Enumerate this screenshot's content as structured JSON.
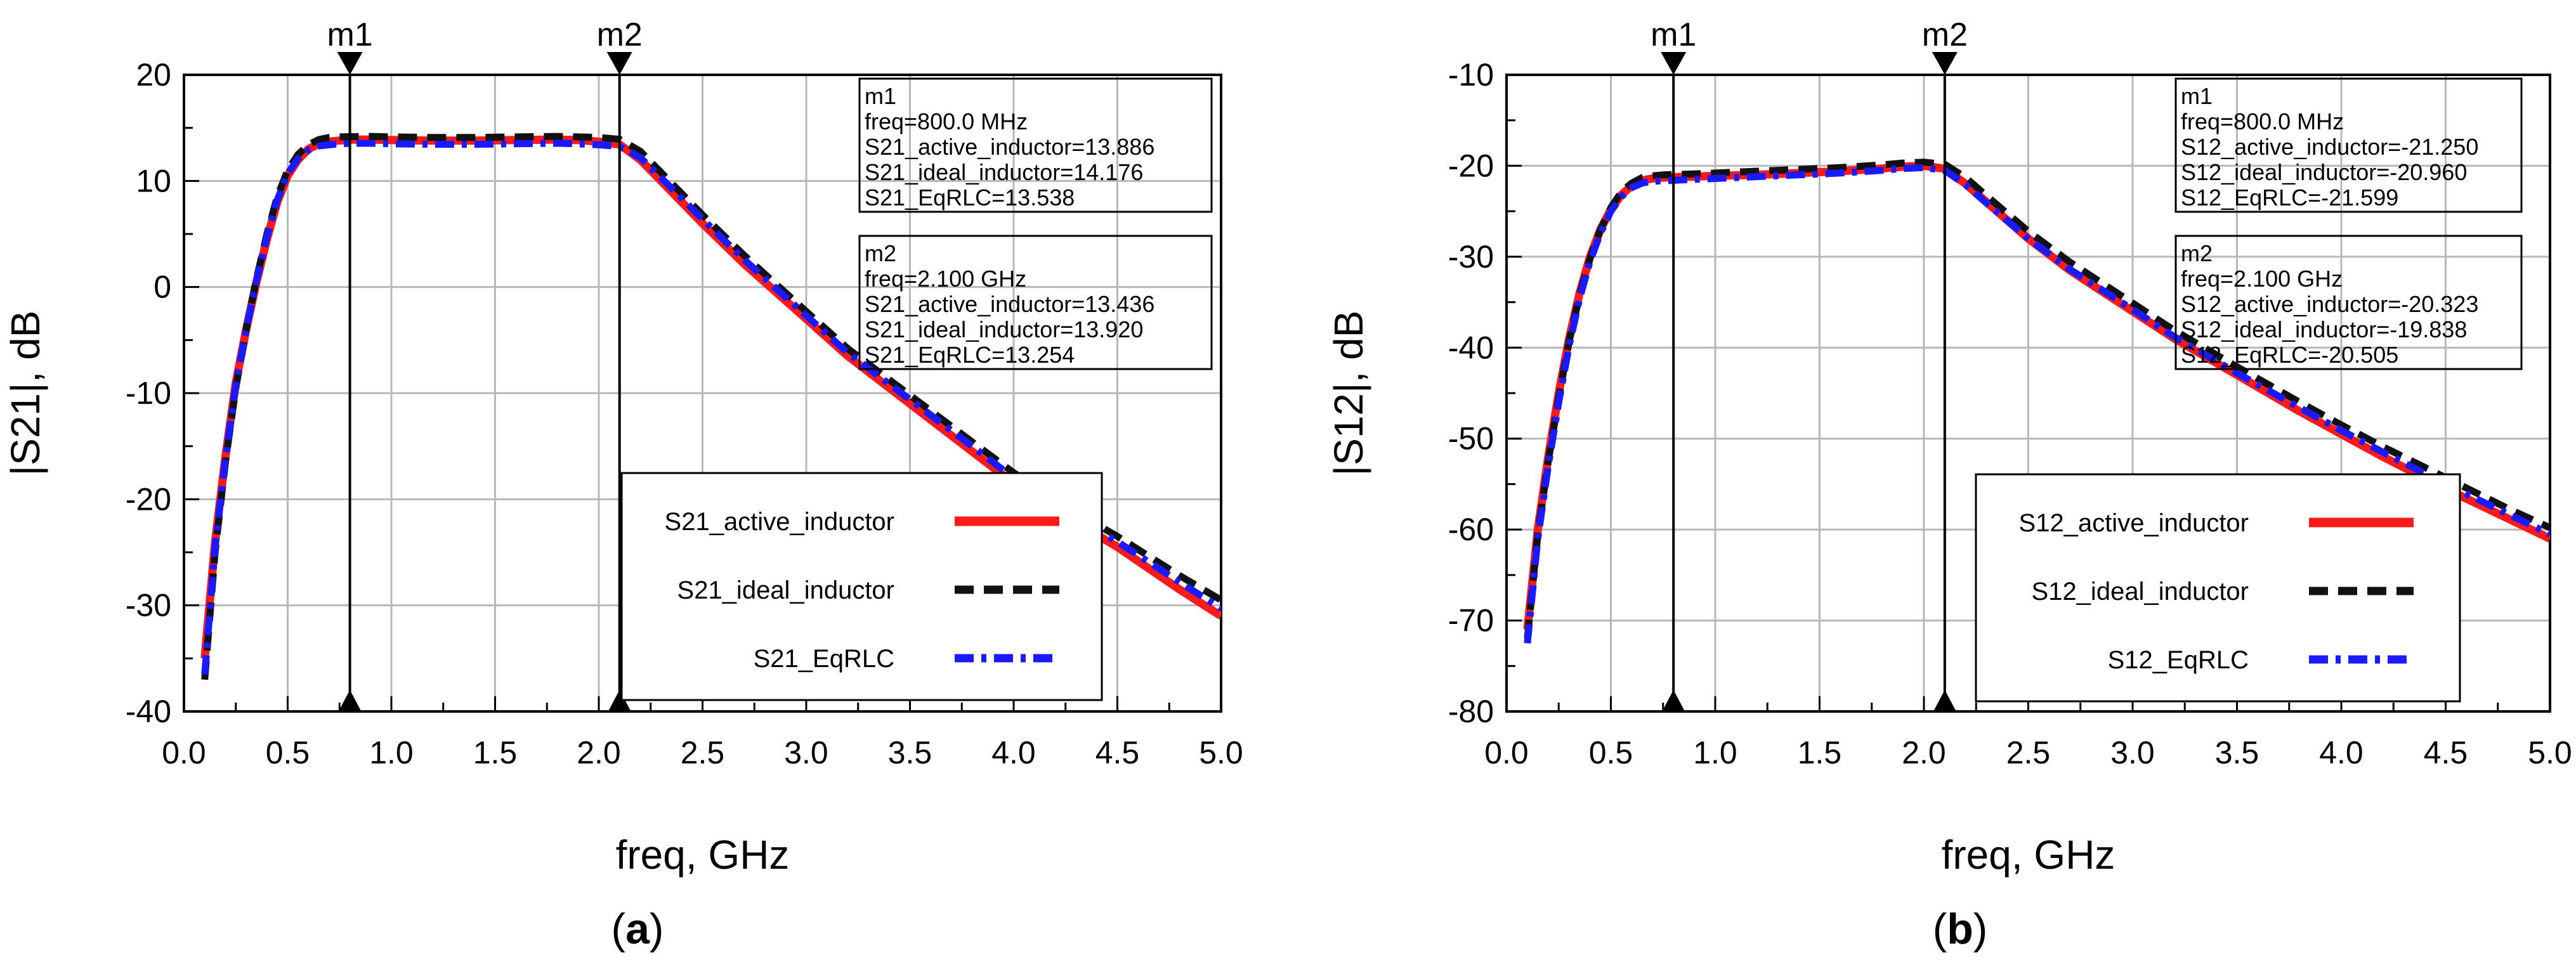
{
  "chart_data": [
    {
      "id": "a",
      "type": "line",
      "panel_label": "(a)",
      "panel_letter": "a",
      "xlabel": "freq, GHz",
      "ylabel": "|S21|, dB",
      "xlim": [
        0.0,
        5.0
      ],
      "ylim": [
        -40,
        20
      ],
      "xticks": [
        0.0,
        0.5,
        1.0,
        1.5,
        2.0,
        2.5,
        3.0,
        3.5,
        4.0,
        4.5,
        5.0
      ],
      "xtick_labels": [
        "0.0",
        "0.5",
        "1.0",
        "1.5",
        "2.0",
        "2.5",
        "3.0",
        "3.5",
        "4.0",
        "4.5",
        "5.0"
      ],
      "yticks": [
        -40,
        -30,
        -20,
        -10,
        0,
        10,
        20
      ],
      "ytick_labels": [
        "-40",
        "-30",
        "-20",
        "-10",
        "0",
        "10",
        "20"
      ],
      "grid": true,
      "x": [
        0.1,
        0.15,
        0.2,
        0.25,
        0.3,
        0.35,
        0.4,
        0.45,
        0.5,
        0.55,
        0.6,
        0.65,
        0.7,
        0.75,
        0.8,
        0.9,
        1.0,
        1.2,
        1.4,
        1.6,
        1.8,
        1.9,
        2.0,
        2.1,
        2.2,
        2.3,
        2.5,
        2.7,
        3.0,
        3.2,
        3.5,
        3.8,
        4.0,
        4.2,
        4.5,
        4.8,
        5.0
      ],
      "series": [
        {
          "name": "S21_active_inductor",
          "color": "#ff1a1a",
          "dash": "solid",
          "values": [
            -35.0,
            -24.0,
            -16.0,
            -9.0,
            -4.0,
            0.5,
            4.5,
            8.0,
            10.5,
            12.0,
            13.0,
            13.5,
            13.7,
            13.8,
            13.886,
            13.9,
            13.85,
            13.8,
            13.8,
            13.85,
            13.9,
            13.85,
            13.7,
            13.436,
            12.0,
            10.0,
            6.0,
            2.2,
            -3.0,
            -6.5,
            -11.0,
            -15.5,
            -18.5,
            -21.0,
            -24.5,
            -28.5,
            -31.0
          ]
        },
        {
          "name": "S21_ideal_inductor",
          "color": "#111111",
          "dash": "dash",
          "values": [
            -37.0,
            -25.0,
            -16.5,
            -9.5,
            -4.0,
            0.8,
            5.0,
            8.5,
            11.0,
            12.5,
            13.4,
            13.9,
            14.1,
            14.15,
            14.176,
            14.2,
            14.15,
            14.1,
            14.1,
            14.15,
            14.2,
            14.15,
            14.1,
            13.92,
            12.8,
            10.8,
            6.8,
            3.0,
            -2.3,
            -5.8,
            -10.2,
            -14.6,
            -17.5,
            -20.1,
            -23.5,
            -27.2,
            -29.5
          ]
        },
        {
          "name": "S21_EqRLC",
          "color": "#1a1aff",
          "dash": "dashdot",
          "values": [
            -36.5,
            -24.5,
            -16.2,
            -9.2,
            -4.0,
            0.6,
            4.7,
            8.2,
            10.7,
            12.1,
            12.9,
            13.3,
            13.4,
            13.5,
            13.538,
            13.55,
            13.5,
            13.45,
            13.45,
            13.5,
            13.55,
            13.5,
            13.4,
            13.254,
            12.2,
            10.3,
            6.4,
            2.6,
            -2.7,
            -6.2,
            -10.6,
            -15.0,
            -18.0,
            -20.6,
            -24.0,
            -27.8,
            -30.3
          ]
        }
      ],
      "markers": [
        {
          "label": "m1",
          "x": 0.8
        },
        {
          "label": "m2",
          "x": 2.1
        }
      ],
      "marker_boxes": [
        {
          "lines": [
            "m1",
            "freq=800.0 MHz",
            "S21_active_inductor=13.886",
            "S21_ideal_inductor=14.176",
            "S21_EqRLC=13.538"
          ]
        },
        {
          "lines": [
            "m2",
            "freq=2.100 GHz",
            "S21_active_inductor=13.436",
            "S21_ideal_inductor=13.920",
            "S21_EqRLC=13.254"
          ]
        }
      ],
      "legend": [
        "S21_active_inductor",
        "S21_ideal_inductor",
        "S21_EqRLC"
      ],
      "legend_placement": "lower-right"
    },
    {
      "id": "b",
      "type": "line",
      "panel_label": "(b)",
      "panel_letter": "b",
      "xlabel": "freq, GHz",
      "ylabel": "|S12|, dB",
      "xlim": [
        0.0,
        5.0
      ],
      "ylim": [
        -80,
        -10
      ],
      "xticks": [
        0.0,
        0.5,
        1.0,
        1.5,
        2.0,
        2.5,
        3.0,
        3.5,
        4.0,
        4.5,
        5.0
      ],
      "xtick_labels": [
        "0.0",
        "0.5",
        "1.0",
        "1.5",
        "2.0",
        "2.5",
        "3.0",
        "3.5",
        "4.0",
        "4.5",
        "5.0"
      ],
      "yticks": [
        -80,
        -70,
        -60,
        -50,
        -40,
        -30,
        -20,
        -10
      ],
      "ytick_labels": [
        "-80",
        "-70",
        "-60",
        "-50",
        "-40",
        "-30",
        "-20",
        "-10"
      ],
      "grid": true,
      "x": [
        0.1,
        0.15,
        0.2,
        0.25,
        0.3,
        0.35,
        0.4,
        0.45,
        0.5,
        0.55,
        0.6,
        0.65,
        0.7,
        0.75,
        0.8,
        0.9,
        1.0,
        1.2,
        1.4,
        1.6,
        1.8,
        1.9,
        2.0,
        2.1,
        2.2,
        2.3,
        2.5,
        2.7,
        3.0,
        3.2,
        3.5,
        3.8,
        4.0,
        4.2,
        4.5,
        4.8,
        5.0
      ],
      "series": [
        {
          "name": "S12_active_inductor",
          "color": "#ff1a1a",
          "dash": "solid",
          "values": [
            -71.0,
            -60.0,
            -52.0,
            -45.0,
            -39.0,
            -34.0,
            -30.0,
            -27.0,
            -24.8,
            -23.2,
            -22.2,
            -21.6,
            -21.4,
            -21.3,
            -21.25,
            -21.2,
            -21.1,
            -21.0,
            -20.8,
            -20.6,
            -20.3,
            -20.1,
            -20.0,
            -20.323,
            -22.0,
            -24.0,
            -28.0,
            -31.5,
            -36.0,
            -39.0,
            -43.0,
            -47.0,
            -49.5,
            -52.0,
            -55.5,
            -58.8,
            -61.0
          ]
        },
        {
          "name": "S12_ideal_inductor",
          "color": "#111111",
          "dash": "dash",
          "values": [
            -72.0,
            -60.5,
            -52.5,
            -45.5,
            -39.3,
            -34.2,
            -30.2,
            -27.0,
            -24.6,
            -22.9,
            -21.9,
            -21.3,
            -21.1,
            -21.0,
            -20.96,
            -20.9,
            -20.8,
            -20.6,
            -20.4,
            -20.2,
            -19.9,
            -19.7,
            -19.6,
            -19.838,
            -21.3,
            -23.3,
            -27.2,
            -30.6,
            -35.1,
            -38.1,
            -42.1,
            -46.0,
            -48.5,
            -50.9,
            -54.3,
            -57.7,
            -59.8
          ]
        },
        {
          "name": "S12_EqRLC",
          "color": "#1a1aff",
          "dash": "dashdot",
          "values": [
            -72.5,
            -61.0,
            -53.0,
            -46.0,
            -39.8,
            -34.6,
            -30.5,
            -27.4,
            -25.0,
            -23.4,
            -22.4,
            -21.9,
            -21.7,
            -21.65,
            -21.599,
            -21.5,
            -21.4,
            -21.2,
            -21.0,
            -20.8,
            -20.5,
            -20.3,
            -20.2,
            -20.505,
            -22.1,
            -24.1,
            -28.0,
            -31.4,
            -35.8,
            -38.8,
            -42.8,
            -46.6,
            -49.1,
            -51.5,
            -55.0,
            -58.3,
            -60.5
          ]
        }
      ],
      "markers": [
        {
          "label": "m1",
          "x": 0.8
        },
        {
          "label": "m2",
          "x": 2.1
        }
      ],
      "marker_boxes": [
        {
          "lines": [
            "m1",
            "freq=800.0 MHz",
            "S12_active_inductor=-21.250",
            "S12_ideal_inductor=-20.960",
            "S12_EqRLC=-21.599"
          ]
        },
        {
          "lines": [
            "m2",
            "freq=2.100 GHz",
            "S12_active_inductor=-20.323",
            "S12_ideal_inductor=-19.838",
            "S12_EqRLC=-20.505"
          ]
        }
      ],
      "legend": [
        "S12_active_inductor",
        "S12_ideal_inductor",
        "S12_EqRLC"
      ],
      "legend_placement": "lower-right"
    }
  ]
}
